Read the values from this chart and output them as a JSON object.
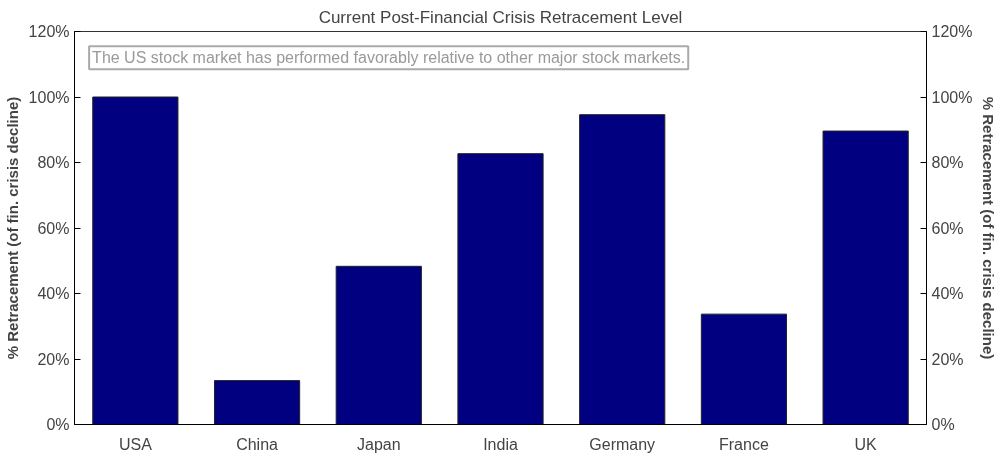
{
  "chart_data": {
    "type": "bar",
    "title": "Current Post-Financial Crisis Retracement Level",
    "categories": [
      "USA",
      "China",
      "Japan",
      "India",
      "Germany",
      "France",
      "UK"
    ],
    "values": [
      100,
      13.4,
      48.3,
      82.7,
      94.6,
      33.7,
      89.6
    ],
    "color": "#000080",
    "ylabel": "% Retracement (of fin. crisis decline)",
    "y2label": "% Retracement (of fin. crisis decline)",
    "ylim": [
      0,
      120
    ],
    "yticks": [
      {
        "value": 0,
        "label": "0%"
      },
      {
        "value": 20,
        "label": "20%"
      },
      {
        "value": 40,
        "label": "40%"
      },
      {
        "value": 60,
        "label": "60%"
      },
      {
        "value": 80,
        "label": "80%"
      },
      {
        "value": 100,
        "label": "100%"
      },
      {
        "value": 120,
        "label": "120%"
      }
    ],
    "y2lim": [
      0,
      120
    ],
    "y2ticks": [
      {
        "value": 0,
        "label": "0%"
      },
      {
        "value": 20,
        "label": "20%"
      },
      {
        "value": 40,
        "label": "40%"
      },
      {
        "value": 60,
        "label": "60%"
      },
      {
        "value": 80,
        "label": "80%"
      },
      {
        "value": 100,
        "label": "100%"
      },
      {
        "value": 120,
        "label": "120%"
      }
    ],
    "annotations": [
      "The US stock market has performed favorably relative to other major stock markets."
    ],
    "grid": false
  }
}
